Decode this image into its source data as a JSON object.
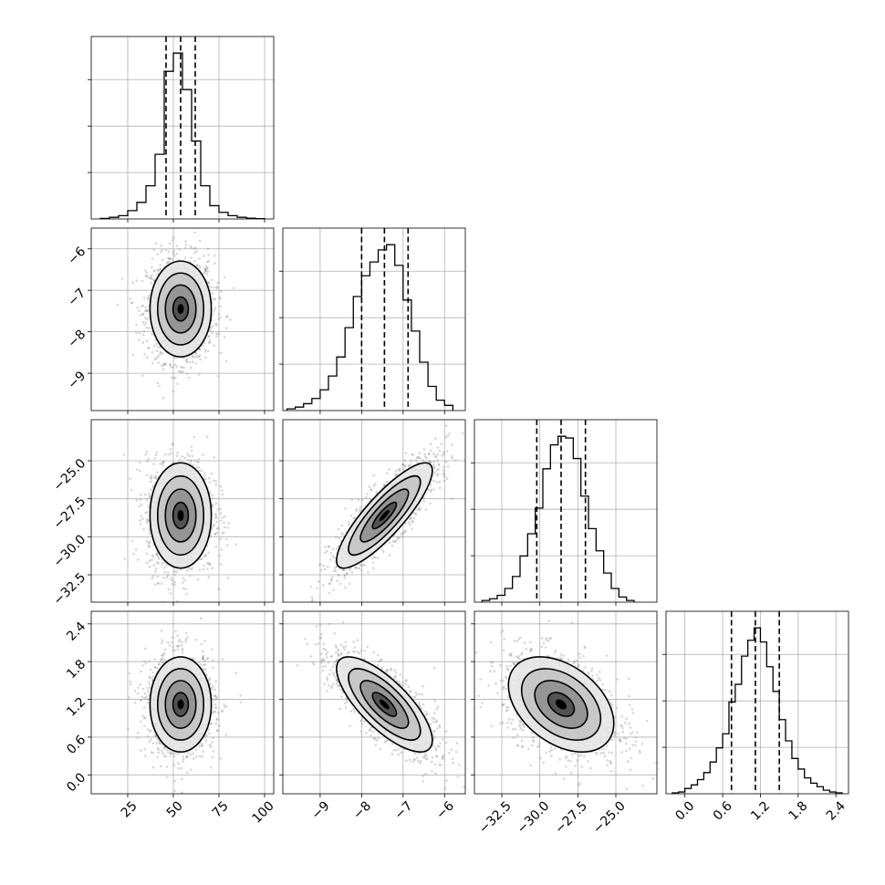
{
  "chart_data": {
    "type": "corner",
    "parameters": [
      {
        "key": "p0",
        "range": [
          5,
          105
        ],
        "ticks": [
          25,
          50,
          75,
          100
        ],
        "tick_labels": [
          "25",
          "50",
          "75",
          "100"
        ],
        "mean": 54,
        "std": 8,
        "quantiles": [
          46,
          54,
          62
        ],
        "histogram": {
          "edges": [
            10,
            15,
            20,
            25,
            30,
            35,
            40,
            45,
            50,
            55,
            60,
            65,
            70,
            75,
            80,
            85,
            90,
            95,
            100
          ],
          "counts": [
            0.3,
            1,
            2,
            5,
            10,
            20,
            39,
            89,
            100,
            78,
            47,
            20,
            8,
            4,
            2,
            1,
            0.5,
            0.2
          ]
        }
      },
      {
        "key": "p1",
        "range": [
          -9.9,
          -5.5
        ],
        "ticks": [
          -9,
          -8,
          -7,
          -6
        ],
        "tick_labels": [
          "−9",
          "−8",
          "−7",
          "−6"
        ],
        "mean": -7.45,
        "std": 0.55,
        "quantiles": [
          -8.0,
          -7.45,
          -6.88
        ],
        "histogram": {
          "edges": [
            -9.8,
            -9.6,
            -9.4,
            -9.2,
            -9.0,
            -8.8,
            -8.6,
            -8.4,
            -8.2,
            -8.0,
            -7.8,
            -7.6,
            -7.4,
            -7.2,
            -7.0,
            -6.8,
            -6.6,
            -6.4,
            -6.2,
            -6.0,
            -5.8
          ],
          "counts": [
            1,
            2,
            4,
            7,
            12,
            20,
            31,
            48,
            66,
            78,
            86,
            93,
            96,
            84,
            64,
            46,
            28,
            14,
            6,
            3
          ]
        }
      },
      {
        "key": "p2",
        "range": [
          -34.3,
          -22.3
        ],
        "ticks": [
          -32.5,
          -30.0,
          -27.5,
          -25.0
        ],
        "tick_labels": [
          "−32.5",
          "−30.0",
          "−27.5",
          "−25.0"
        ],
        "mean": -28.6,
        "std": 1.65,
        "quantiles": [
          -30.2,
          -28.6,
          -27.0
        ],
        "histogram": {
          "edges": [
            -33.8,
            -33.3,
            -32.8,
            -32.3,
            -31.8,
            -31.3,
            -30.8,
            -30.3,
            -29.8,
            -29.3,
            -28.8,
            -28.3,
            -27.8,
            -27.3,
            -26.8,
            -26.3,
            -25.8,
            -25.3,
            -24.8,
            -24.3,
            -23.8
          ],
          "counts": [
            1,
            2,
            4,
            8,
            15,
            27,
            40,
            55,
            78,
            92,
            97,
            96,
            84,
            62,
            43,
            30,
            17,
            8,
            3,
            1
          ]
        }
      },
      {
        "key": "p3",
        "range": [
          -0.3,
          2.6
        ],
        "ticks": [
          0.0,
          0.6,
          1.2,
          1.8,
          2.4
        ],
        "tick_labels": [
          "0.0",
          "0.6",
          "1.2",
          "1.8",
          "2.4"
        ],
        "mean": 1.12,
        "std": 0.36,
        "quantiles": [
          0.74,
          1.12,
          1.5
        ],
        "histogram": {
          "edges": [
            -0.2,
            -0.1,
            0.0,
            0.1,
            0.2,
            0.3,
            0.4,
            0.5,
            0.6,
            0.7,
            0.8,
            0.9,
            1.0,
            1.1,
            1.2,
            1.3,
            1.4,
            1.5,
            1.6,
            1.7,
            1.8,
            1.9,
            2.0,
            2.1,
            2.2,
            2.3,
            2.4,
            2.5
          ],
          "counts": [
            0.5,
            1,
            3,
            5,
            8,
            12,
            18,
            26,
            34,
            52,
            62,
            78,
            87,
            94,
            86,
            72,
            58,
            42,
            30,
            20,
            14,
            9,
            6,
            4,
            2,
            1,
            0.5
          ]
        }
      }
    ],
    "correlations": {
      "p0-p1": 0.0,
      "p0-p2": 0.0,
      "p0-p3": 0.0,
      "p1-p2": 0.85,
      "p1-p3": -0.75,
      "p2-p3": -0.4
    },
    "contour_levels_sigma": [
      0.5,
      1.0,
      1.5,
      2.0
    ],
    "grid": true
  }
}
